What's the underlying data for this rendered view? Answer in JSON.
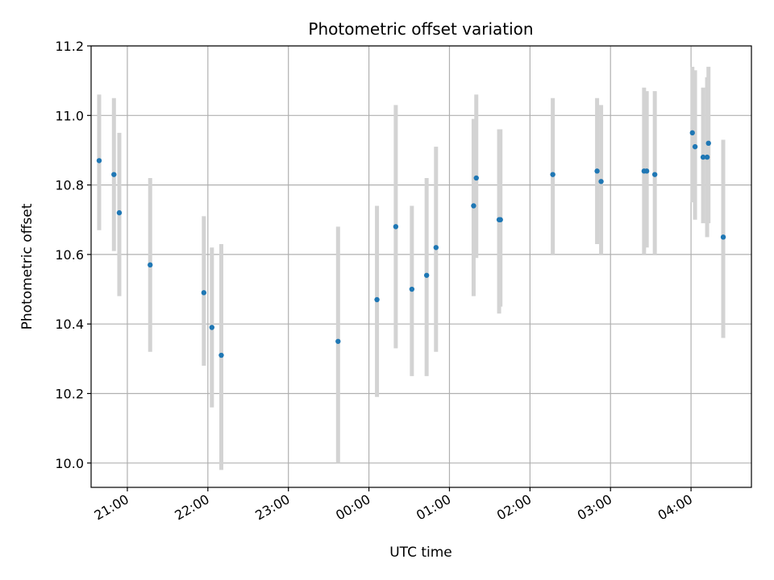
{
  "chart_data": {
    "type": "scatter",
    "title": "Photometric offset variation",
    "xlabel": "UTC time",
    "ylabel": "Photometric offset",
    "x_unit": "UTC time of day",
    "xlim": [
      "20:33",
      "04:45"
    ],
    "ylim": [
      9.93,
      11.2
    ],
    "grid": true,
    "x_ticks": [
      "21:00",
      "22:00",
      "23:00",
      "00:00",
      "01:00",
      "02:00",
      "03:00",
      "04:00"
    ],
    "y_ticks": [
      10.0,
      10.2,
      10.4,
      10.6,
      10.8,
      11.0,
      11.2
    ],
    "colors": {
      "points": "#1f77b4",
      "error_bars": "#d3d3d3",
      "grid": "#b0b0b0"
    },
    "points": [
      {
        "time": "20:39",
        "y": 10.87,
        "y_low": 10.67,
        "y_high": 11.06
      },
      {
        "time": "20:50",
        "y": 10.83,
        "y_low": 10.61,
        "y_high": 11.05
      },
      {
        "time": "20:54",
        "y": 10.72,
        "y_low": 10.48,
        "y_high": 10.95
      },
      {
        "time": "21:17",
        "y": 10.57,
        "y_low": 10.32,
        "y_high": 10.82
      },
      {
        "time": "21:57",
        "y": 10.49,
        "y_low": 10.28,
        "y_high": 10.71
      },
      {
        "time": "22:03",
        "y": 10.39,
        "y_low": 10.16,
        "y_high": 10.62
      },
      {
        "time": "22:10",
        "y": 10.31,
        "y_low": 9.98,
        "y_high": 10.63
      },
      {
        "time": "23:37",
        "y": 10.35,
        "y_low": 10.0,
        "y_high": 10.68
      },
      {
        "time": "00:06",
        "y": 10.47,
        "y_low": 10.19,
        "y_high": 10.74
      },
      {
        "time": "00:20",
        "y": 10.68,
        "y_low": 10.33,
        "y_high": 11.03
      },
      {
        "time": "00:32",
        "y": 10.5,
        "y_low": 10.25,
        "y_high": 10.74
      },
      {
        "time": "00:43",
        "y": 10.54,
        "y_low": 10.25,
        "y_high": 10.82
      },
      {
        "time": "00:50",
        "y": 10.62,
        "y_low": 10.32,
        "y_high": 10.91
      },
      {
        "time": "01:18",
        "y": 10.74,
        "y_low": 10.48,
        "y_high": 10.99
      },
      {
        "time": "01:20",
        "y": 10.82,
        "y_low": 10.59,
        "y_high": 11.06
      },
      {
        "time": "01:37",
        "y": 10.7,
        "y_low": 10.43,
        "y_high": 10.96
      },
      {
        "time": "01:38",
        "y": 10.7,
        "y_low": 10.45,
        "y_high": 10.96
      },
      {
        "time": "02:17",
        "y": 10.83,
        "y_low": 10.6,
        "y_high": 11.05
      },
      {
        "time": "02:50",
        "y": 10.84,
        "y_low": 10.63,
        "y_high": 11.05
      },
      {
        "time": "02:53",
        "y": 10.81,
        "y_low": 10.6,
        "y_high": 11.03
      },
      {
        "time": "03:25",
        "y": 10.84,
        "y_low": 10.6,
        "y_high": 11.08
      },
      {
        "time": "03:27",
        "y": 10.84,
        "y_low": 10.62,
        "y_high": 11.07
      },
      {
        "time": "03:33",
        "y": 10.83,
        "y_low": 10.6,
        "y_high": 11.07
      },
      {
        "time": "04:01",
        "y": 10.95,
        "y_low": 10.75,
        "y_high": 11.14
      },
      {
        "time": "04:03",
        "y": 10.91,
        "y_low": 10.7,
        "y_high": 11.13
      },
      {
        "time": "04:09",
        "y": 10.88,
        "y_low": 10.69,
        "y_high": 11.08
      },
      {
        "time": "04:12",
        "y": 10.88,
        "y_low": 10.65,
        "y_high": 11.11
      },
      {
        "time": "04:13",
        "y": 10.92,
        "y_low": 10.69,
        "y_high": 11.14
      },
      {
        "time": "04:24",
        "y": 10.65,
        "y_low": 10.36,
        "y_high": 10.93
      }
    ]
  }
}
